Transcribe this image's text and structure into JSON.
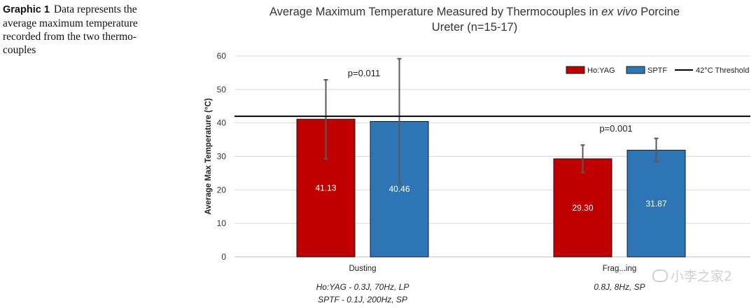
{
  "caption": {
    "label": "Graphic 1",
    "text": "Data represents the average maximum temperature recorded from the two thermo-couples"
  },
  "watermark": "小李之家2",
  "chart_data": {
    "type": "bar",
    "title": [
      "Average Maximum Temperature Measured by Thermocouples in ",
      "ex vivo",
      " Porcine",
      "Ureter (n=15-17)"
    ],
    "ylabel": "Average Max Temperature (°C)",
    "xlabel": "",
    "ylim": [
      0,
      60
    ],
    "yticks": [
      0,
      10,
      20,
      30,
      40,
      50,
      60
    ],
    "grid": true,
    "legend_position": "top-right",
    "categories": [
      "Dusting",
      "Fragmenting"
    ],
    "category_labels": [
      "Dusting",
      "Frag...ing"
    ],
    "category_sublabels": [
      [
        "Ho:YAG - 0.3J, 70Hz, LP",
        "SPTF - 0.1J, 200Hz, SP"
      ],
      [
        "0.8J, 8Hz, SP"
      ]
    ],
    "series": [
      {
        "name": "Ho:YAG",
        "color": "#c00000",
        "values": [
          41.13,
          29.3
        ],
        "value_labels": [
          "41.13",
          "29.30"
        ],
        "error_low": [
          29.3,
          25.2
        ],
        "error_high": [
          52.9,
          33.4
        ]
      },
      {
        "name": "SPTF",
        "color": "#2e75b6",
        "values": [
          40.46,
          31.87
        ],
        "value_labels": [
          "40.46",
          "31.87"
        ],
        "error_low": [
          21.8,
          28.4
        ],
        "error_high": [
          59.2,
          35.4
        ]
      }
    ],
    "threshold": {
      "name": "42°C Threshold",
      "value": 42,
      "color": "#000000"
    },
    "annotations": [
      {
        "text": "p=0.011",
        "category": 0
      },
      {
        "text": "p=0.001",
        "category": 1
      }
    ]
  }
}
